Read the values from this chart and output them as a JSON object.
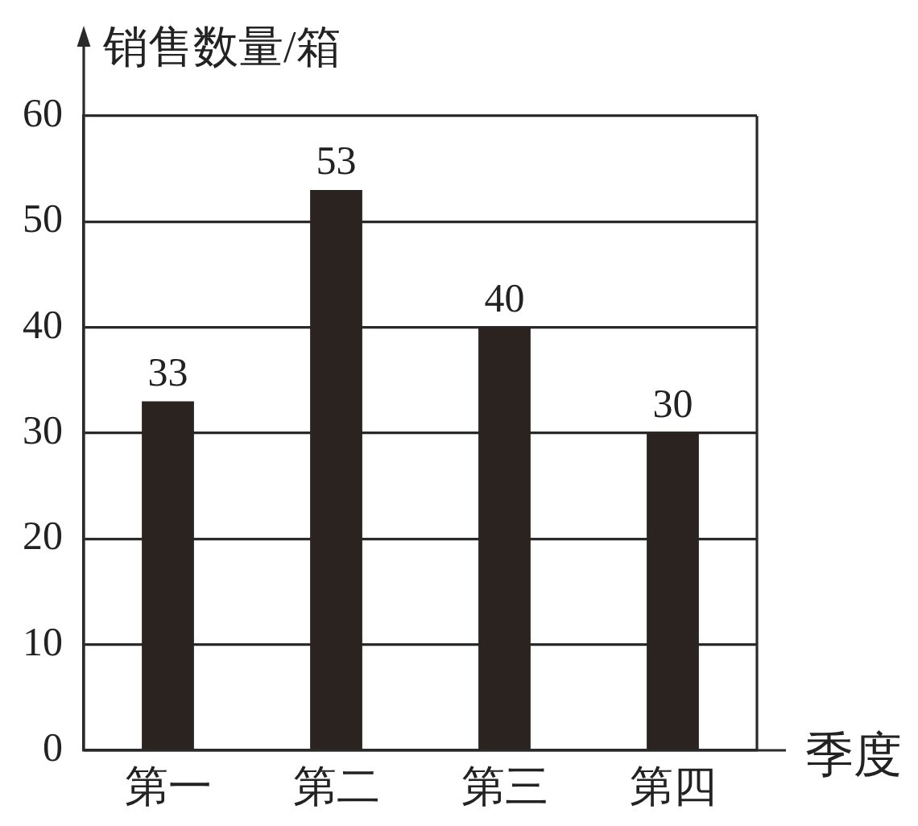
{
  "chart_data": {
    "type": "bar",
    "xlabel": "季度",
    "ylabel": "销售数量/箱",
    "categories": [
      "第一",
      "第二",
      "第三",
      "第四"
    ],
    "values": [
      33,
      53,
      40,
      30
    ],
    "color": "#2b2320",
    "ylim": [
      0,
      60
    ],
    "yticks": [
      0,
      10,
      20,
      30,
      40,
      50,
      60
    ],
    "grid": "y",
    "data_labels": true
  }
}
